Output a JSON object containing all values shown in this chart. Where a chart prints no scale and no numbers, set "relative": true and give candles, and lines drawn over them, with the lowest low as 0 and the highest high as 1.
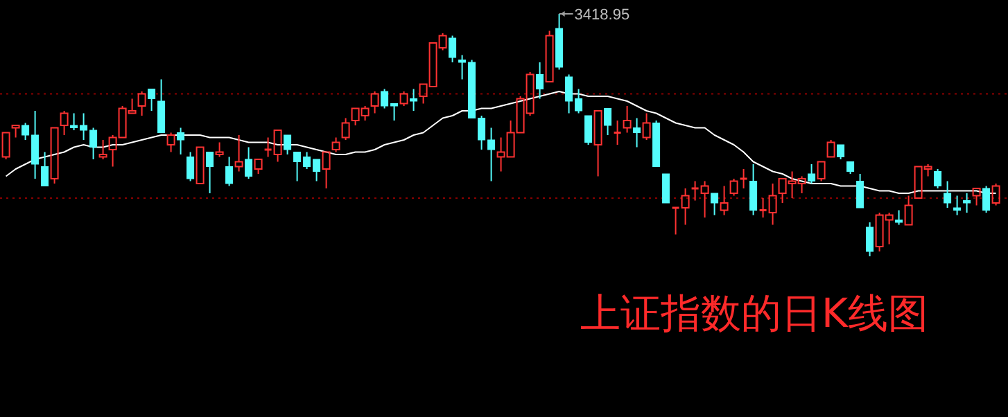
{
  "chart_data": {
    "type": "candlestick",
    "title": "上证指数的日K线图",
    "relative": true,
    "categories": [
      null,
      null,
      null,
      null,
      null,
      null,
      null,
      null,
      null,
      null,
      null,
      null,
      null,
      null,
      null,
      null,
      null,
      null,
      null,
      null,
      null,
      null,
      null,
      null,
      null,
      null,
      null,
      null,
      null,
      null,
      null,
      null,
      null,
      null,
      null,
      null,
      null,
      null,
      null,
      null,
      null,
      null,
      null,
      null,
      null,
      null,
      null,
      null,
      null,
      null,
      null,
      null,
      null,
      null,
      null,
      null,
      null,
      null,
      null,
      null,
      null,
      null,
      null,
      null,
      null,
      null,
      null,
      null,
      null,
      null,
      null,
      null,
      null,
      null,
      null,
      null,
      null,
      null,
      null,
      null,
      null,
      null,
      null,
      null,
      null,
      null,
      null,
      null,
      null,
      null,
      null,
      null,
      null,
      null,
      null,
      null,
      null,
      null,
      null,
      null,
      null,
      null,
      null
    ],
    "ohlc": [
      [
        0.41,
        0.51,
        0.4,
        0.51
      ],
      [
        0.53,
        0.54,
        0.49,
        0.54
      ],
      [
        0.54,
        0.55,
        0.48,
        0.5
      ],
      [
        0.5,
        0.6,
        0.32,
        0.38
      ],
      [
        0.37,
        0.43,
        0.29,
        0.29
      ],
      [
        0.32,
        0.53,
        0.3,
        0.53
      ],
      [
        0.54,
        0.6,
        0.5,
        0.59
      ],
      [
        0.54,
        0.59,
        0.52,
        0.53
      ],
      [
        0.54,
        0.59,
        0.48,
        0.52
      ],
      [
        0.52,
        0.53,
        0.4,
        0.45
      ],
      [
        0.41,
        0.48,
        0.4,
        0.42
      ],
      [
        0.44,
        0.5,
        0.37,
        0.49
      ],
      [
        0.49,
        0.62,
        0.49,
        0.61
      ],
      [
        0.59,
        0.65,
        0.59,
        0.6
      ],
      [
        0.62,
        0.68,
        0.58,
        0.67
      ],
      [
        0.69,
        0.69,
        0.6,
        0.65
      ],
      [
        0.64,
        0.73,
        0.51,
        0.51
      ],
      [
        0.46,
        0.51,
        0.43,
        0.5
      ],
      [
        0.51,
        0.53,
        0.42,
        0.48
      ],
      [
        0.41,
        0.43,
        0.31,
        0.32
      ],
      [
        0.3,
        0.45,
        0.3,
        0.45
      ],
      [
        0.43,
        0.43,
        0.26,
        0.37
      ],
      [
        0.42,
        0.47,
        0.41,
        0.43
      ],
      [
        0.37,
        0.41,
        0.29,
        0.3
      ],
      [
        0.37,
        0.5,
        0.35,
        0.39
      ],
      [
        0.4,
        0.45,
        0.32,
        0.33
      ],
      [
        0.36,
        0.4,
        0.34,
        0.4
      ],
      [
        0.44,
        0.49,
        0.41,
        0.44
      ],
      [
        0.42,
        0.52,
        0.39,
        0.52
      ],
      [
        0.5,
        0.5,
        0.42,
        0.44
      ],
      [
        0.43,
        0.43,
        0.31,
        0.39
      ],
      [
        0.41,
        0.43,
        0.36,
        0.37
      ],
      [
        0.4,
        0.4,
        0.31,
        0.35
      ],
      [
        0.36,
        0.43,
        0.28,
        0.43
      ],
      [
        0.44,
        0.49,
        0.43,
        0.47
      ],
      [
        0.49,
        0.57,
        0.48,
        0.55
      ],
      [
        0.56,
        0.61,
        0.54,
        0.61
      ],
      [
        0.58,
        0.62,
        0.56,
        0.61
      ],
      [
        0.62,
        0.68,
        0.59,
        0.67
      ],
      [
        0.68,
        0.69,
        0.61,
        0.62
      ],
      [
        0.63,
        0.63,
        0.56,
        0.62
      ],
      [
        0.63,
        0.68,
        0.62,
        0.67
      ],
      [
        0.65,
        0.69,
        0.6,
        0.64
      ],
      [
        0.66,
        0.71,
        0.63,
        0.71
      ],
      [
        0.7,
        0.88,
        0.7,
        0.88
      ],
      [
        0.86,
        0.92,
        0.85,
        0.91
      ],
      [
        0.9,
        0.91,
        0.8,
        0.82
      ],
      [
        0.81,
        0.83,
        0.73,
        0.8
      ],
      [
        0.8,
        0.81,
        0.57,
        0.57
      ],
      [
        0.57,
        0.58,
        0.44,
        0.48
      ],
      [
        0.48,
        0.53,
        0.31,
        0.44
      ],
      [
        0.41,
        0.49,
        0.35,
        0.43
      ],
      [
        0.41,
        0.56,
        0.41,
        0.51
      ],
      [
        0.51,
        0.66,
        0.51,
        0.65
      ],
      [
        0.59,
        0.76,
        0.58,
        0.75
      ],
      [
        0.75,
        0.8,
        0.65,
        0.69
      ],
      [
        0.72,
        0.93,
        0.72,
        0.91
      ],
      [
        0.94,
        1.0,
        0.77,
        0.78
      ],
      [
        0.74,
        0.75,
        0.59,
        0.64
      ],
      [
        0.65,
        0.69,
        0.59,
        0.6
      ],
      [
        0.58,
        0.58,
        0.46,
        0.47
      ],
      [
        0.46,
        0.6,
        0.33,
        0.6
      ],
      [
        0.61,
        0.61,
        0.5,
        0.54
      ],
      [
        0.51,
        0.56,
        0.46,
        0.51
      ],
      [
        0.53,
        0.62,
        0.51,
        0.56
      ],
      [
        0.53,
        0.57,
        0.45,
        0.51
      ],
      [
        0.49,
        0.59,
        0.48,
        0.55
      ],
      [
        0.55,
        0.56,
        0.37,
        0.37
      ],
      [
        0.34,
        0.34,
        0.22,
        0.22
      ],
      [
        0.2,
        0.2,
        0.09,
        0.2
      ],
      [
        0.2,
        0.28,
        0.13,
        0.25
      ],
      [
        0.28,
        0.31,
        0.23,
        0.28
      ],
      [
        0.26,
        0.31,
        0.16,
        0.29
      ],
      [
        0.26,
        0.26,
        0.17,
        0.22
      ],
      [
        0.19,
        0.29,
        0.17,
        0.22
      ],
      [
        0.26,
        0.32,
        0.25,
        0.31
      ],
      [
        0.32,
        0.36,
        0.28,
        0.32
      ],
      [
        0.31,
        0.38,
        0.17,
        0.19
      ],
      [
        0.19,
        0.24,
        0.16,
        0.19
      ],
      [
        0.18,
        0.3,
        0.13,
        0.25
      ],
      [
        0.26,
        0.32,
        0.22,
        0.32
      ],
      [
        0.3,
        0.35,
        0.24,
        0.31
      ],
      [
        0.3,
        0.33,
        0.26,
        0.32
      ],
      [
        0.34,
        0.38,
        0.3,
        0.31
      ],
      [
        0.32,
        0.39,
        0.31,
        0.39
      ],
      [
        0.41,
        0.48,
        0.41,
        0.47
      ],
      [
        0.46,
        0.46,
        0.4,
        0.41
      ],
      [
        0.39,
        0.39,
        0.34,
        0.35
      ],
      [
        0.31,
        0.34,
        0.2,
        0.2
      ],
      [
        0.12,
        0.14,
        0.0,
        0.02
      ],
      [
        0.04,
        0.18,
        0.02,
        0.17
      ],
      [
        0.15,
        0.18,
        0.05,
        0.17
      ],
      [
        0.15,
        0.19,
        0.13,
        0.14
      ],
      [
        0.13,
        0.25,
        0.13,
        0.21
      ],
      [
        0.24,
        0.37,
        0.24,
        0.37
      ],
      [
        0.36,
        0.38,
        0.33,
        0.37
      ],
      [
        0.35,
        0.36,
        0.28,
        0.29
      ],
      [
        0.26,
        0.31,
        0.2,
        0.22
      ],
      [
        0.2,
        0.25,
        0.17,
        0.19
      ],
      [
        0.23,
        0.26,
        0.18,
        0.22
      ],
      [
        0.25,
        0.28,
        0.21,
        0.28
      ],
      [
        0.28,
        0.29,
        0.18,
        0.19
      ],
      [
        0.22,
        0.3,
        0.21,
        0.29
      ]
    ],
    "colors": [
      "#ff3232",
      "#ff3232",
      "#54fcfc",
      "#54fcfc",
      "#54fcfc",
      "#ff3232",
      "#ff3232",
      "#54fcfc",
      "#54fcfc",
      "#54fcfc",
      "#ff3232",
      "#ff3232",
      "#ff3232",
      "#ff3232",
      "#ff3232",
      "#54fcfc",
      "#54fcfc",
      "#ff3232",
      "#54fcfc",
      "#54fcfc",
      "#ff3232",
      "#54fcfc",
      "#ff3232",
      "#54fcfc",
      "#ff3232",
      "#54fcfc",
      "#ff3232",
      "#ff3232",
      "#ff3232",
      "#54fcfc",
      "#54fcfc",
      "#54fcfc",
      "#54fcfc",
      "#ff3232",
      "#ff3232",
      "#ff3232",
      "#ff3232",
      "#ff3232",
      "#ff3232",
      "#54fcfc",
      "#54fcfc",
      "#ff3232",
      "#54fcfc",
      "#ff3232",
      "#ff3232",
      "#ff3232",
      "#54fcfc",
      "#54fcfc",
      "#54fcfc",
      "#54fcfc",
      "#54fcfc",
      "#ff3232",
      "#ff3232",
      "#ff3232",
      "#ff3232",
      "#54fcfc",
      "#ff3232",
      "#54fcfc",
      "#54fcfc",
      "#54fcfc",
      "#54fcfc",
      "#ff3232",
      "#54fcfc",
      "#ff3232",
      "#ff3232",
      "#54fcfc",
      "#ff3232",
      "#54fcfc",
      "#54fcfc",
      "#ff3232",
      "#ff3232",
      "#ff3232",
      "#ff3232",
      "#54fcfc",
      "#ff3232",
      "#ff3232",
      "#ff3232",
      "#54fcfc",
      "#ff3232",
      "#ff3232",
      "#ff3232",
      "#ff3232",
      "#ff3232",
      "#54fcfc",
      "#ff3232",
      "#ff3232",
      "#54fcfc",
      "#54fcfc",
      "#54fcfc",
      "#54fcfc",
      "#ff3232",
      "#ff3232",
      "#54fcfc",
      "#ff3232",
      "#ff3232",
      "#ff3232",
      "#54fcfc",
      "#54fcfc",
      "#54fcfc",
      "#54fcfc",
      "#ff3232",
      "#54fcfc",
      "#ff3232"
    ],
    "series": [
      {
        "type": "line",
        "color": "#ffffff",
        "values": [
          0.33,
          0.36,
          0.38,
          0.4,
          0.41,
          0.42,
          0.43,
          0.45,
          0.46,
          0.45,
          0.45,
          0.46,
          0.46,
          0.47,
          0.48,
          0.49,
          0.5,
          0.5,
          0.5,
          0.5,
          0.5,
          0.49,
          0.49,
          0.49,
          0.48,
          0.47,
          0.47,
          0.47,
          0.46,
          0.46,
          0.46,
          0.45,
          0.44,
          0.43,
          0.42,
          0.42,
          0.43,
          0.43,
          0.44,
          0.46,
          0.47,
          0.48,
          0.5,
          0.51,
          0.54,
          0.57,
          0.58,
          0.6,
          0.6,
          0.61,
          0.61,
          0.62,
          0.63,
          0.64,
          0.65,
          0.66,
          0.67,
          0.68,
          0.67,
          0.67,
          0.66,
          0.66,
          0.66,
          0.65,
          0.64,
          0.62,
          0.6,
          0.59,
          0.57,
          0.55,
          0.54,
          0.53,
          0.53,
          0.5,
          0.48,
          0.46,
          0.43,
          0.39,
          0.37,
          0.35,
          0.34,
          0.32,
          0.31,
          0.3,
          0.3,
          0.3,
          0.29,
          0.29,
          0.29,
          0.28,
          0.27,
          0.27,
          0.26,
          0.26,
          0.27,
          0.27,
          0.27,
          0.27,
          0.27,
          0.27,
          0.27,
          0.26,
          0.26
        ]
      }
    ],
    "ref_lines": [
      {
        "axis": "y",
        "value": 0.67,
        "color": "#8b0000",
        "line_style": "dotted"
      },
      {
        "axis": "y",
        "value": 0.24,
        "color": "#8b0000",
        "line_style": "dotted"
      }
    ],
    "annotations": [
      "3418.95"
    ]
  }
}
